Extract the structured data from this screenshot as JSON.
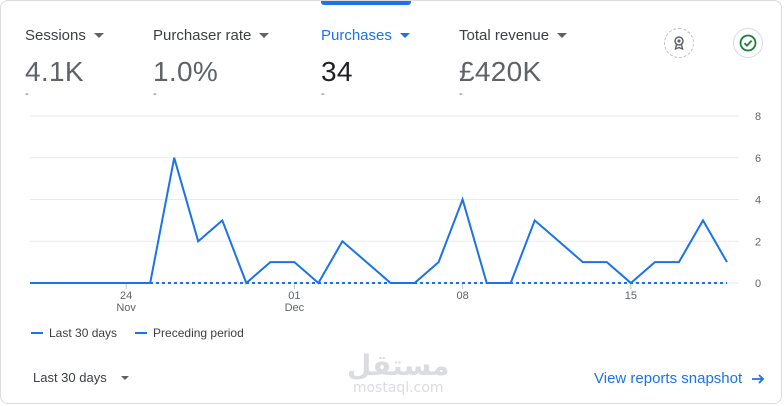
{
  "metrics": [
    {
      "label": "Sessions",
      "value": "4.1K",
      "sub": "-"
    },
    {
      "label": "Purchaser rate",
      "value": "1.0%",
      "sub": "-"
    },
    {
      "label": "Purchases",
      "value": "34",
      "sub": "-"
    },
    {
      "label": "Total revenue",
      "value": "£420K",
      "sub": "-"
    }
  ],
  "icons": {
    "insights": "award-ribbon-icon",
    "status": "check-circle-icon"
  },
  "colors": {
    "accent": "#1a73e8",
    "status": "#188038"
  },
  "chart_data": {
    "type": "line",
    "x": [
      "Nov 20",
      "Nov 21",
      "Nov 22",
      "Nov 23",
      "Nov 24",
      "Nov 25",
      "Nov 26",
      "Nov 27",
      "Nov 28",
      "Nov 29",
      "Nov 30",
      "Dec 01",
      "Dec 02",
      "Dec 03",
      "Dec 04",
      "Dec 05",
      "Dec 06",
      "Dec 07",
      "Dec 08",
      "Dec 09",
      "Dec 10",
      "Dec 11",
      "Dec 12",
      "Dec 13",
      "Dec 14",
      "Dec 15",
      "Dec 16",
      "Dec 17",
      "Dec 18",
      "Dec 19"
    ],
    "series": [
      {
        "name": "Last 30 days",
        "values": [
          0,
          0,
          0,
          0,
          0,
          0,
          6,
          2,
          3,
          0,
          1,
          1,
          0,
          2,
          1,
          0,
          0,
          1,
          4,
          0,
          0,
          3,
          2,
          1,
          1,
          0,
          1,
          1,
          3,
          1
        ],
        "style": "solid"
      },
      {
        "name": "Preceding period",
        "values": [
          0,
          0,
          0,
          0,
          0,
          0,
          0,
          0,
          0,
          0,
          0,
          0,
          0,
          0,
          0,
          0,
          0,
          0,
          0,
          0,
          0,
          0,
          0,
          0,
          0,
          0,
          0,
          0,
          0,
          0
        ],
        "style": "dashed"
      }
    ],
    "x_ticks": [
      {
        "index": 4,
        "day": "24",
        "month": "Nov"
      },
      {
        "index": 11,
        "day": "01",
        "month": "Dec"
      },
      {
        "index": 18,
        "day": "08",
        "month": ""
      },
      {
        "index": 25,
        "day": "15",
        "month": ""
      }
    ],
    "y_ticks": [
      "0",
      "2",
      "4",
      "6",
      "8"
    ],
    "ylim": [
      0,
      8
    ],
    "grid": true,
    "legend_position": "bottom-left"
  },
  "legend": {
    "current": "Last 30 days",
    "previous": "Preceding period"
  },
  "footer": {
    "range_label": "Last 30 days",
    "link_label": "View reports snapshot"
  },
  "watermark": {
    "arabic": "مستقل",
    "latin": "mostaql.com"
  }
}
